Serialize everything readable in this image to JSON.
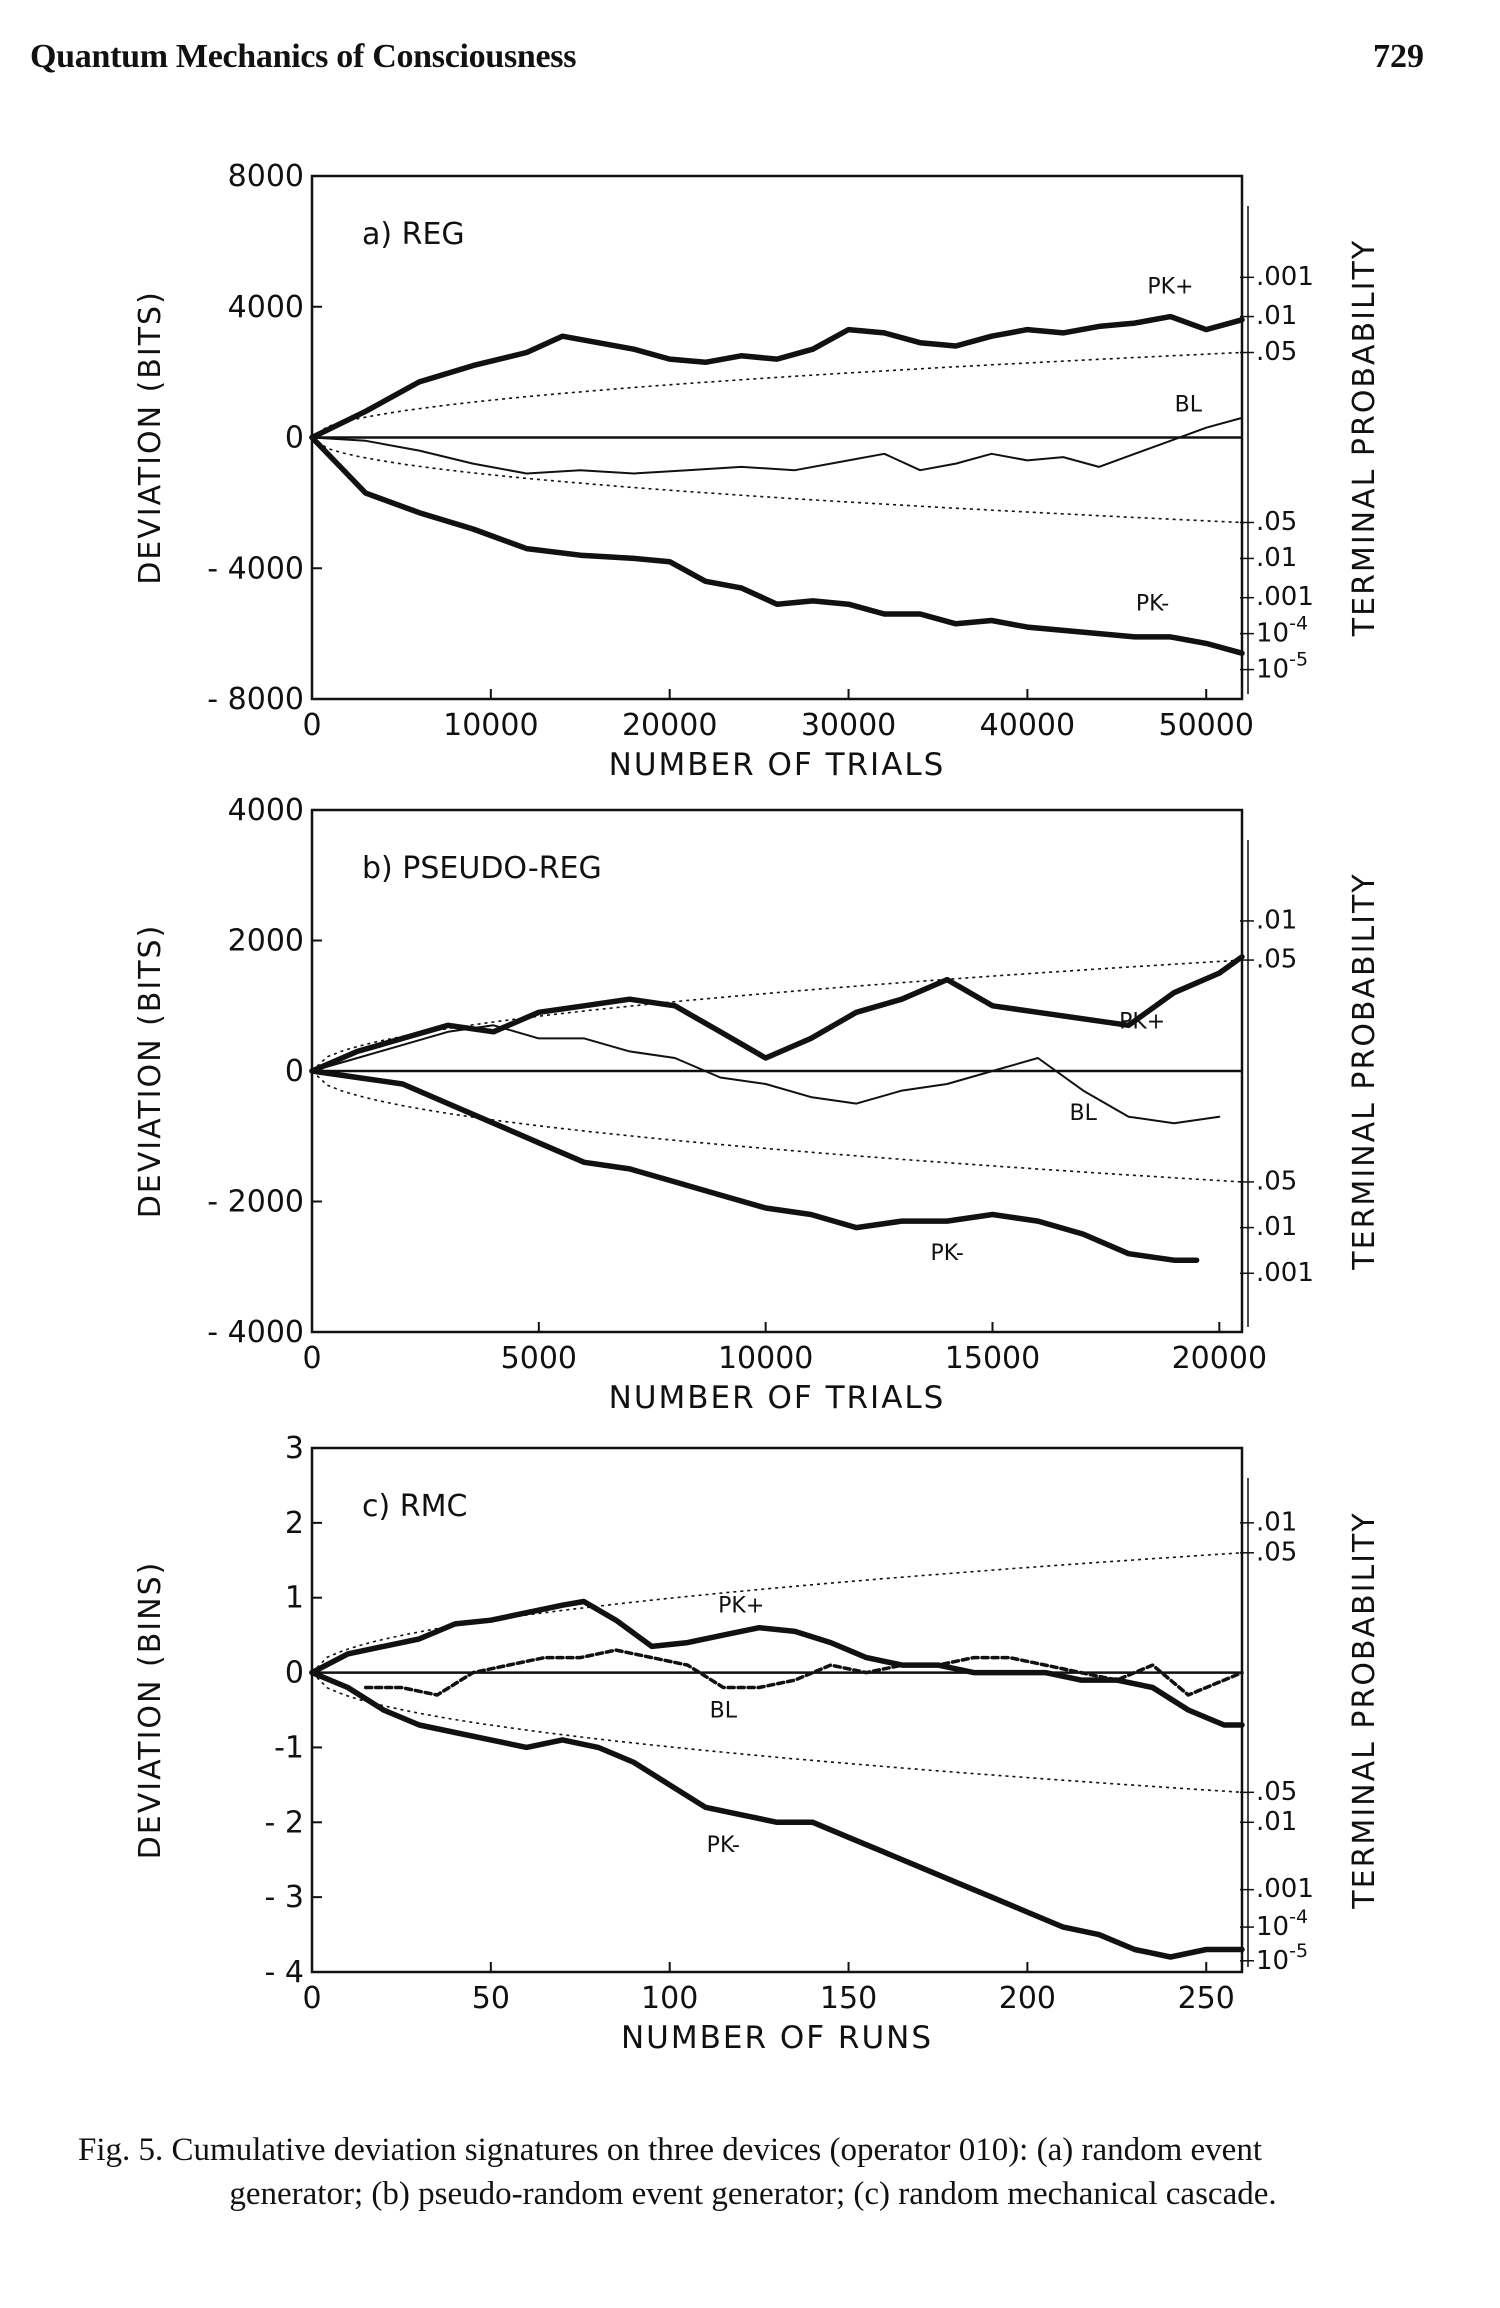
{
  "header": {
    "running_title": "Quantum Mechanics of Consciousness",
    "page_number": "729"
  },
  "caption": {
    "line1": "Fig. 5.  Cumulative deviation signatures on three devices (operator 010): (a) random event",
    "line2": "generator; (b) pseudo-random event generator; (c) random mechanical cascade."
  },
  "chart_data": [
    {
      "type": "line",
      "panel_label": "a) REG",
      "xlabel": "NUMBER OF TRIALS",
      "ylabel": "DEVIATION (BITS)",
      "right_label": "TERMINAL PROBABILITY",
      "xlim": [
        0,
        52000
      ],
      "ylim": [
        -8000,
        8000
      ],
      "x_ticks": [
        0,
        10000,
        20000,
        30000,
        40000,
        50000
      ],
      "x_tick_labels": [
        "0",
        "10000",
        "20000",
        "30000",
        "40000",
        "50000"
      ],
      "y_ticks": [
        8000,
        4000,
        0,
        -4000,
        -8000
      ],
      "y_tick_labels": [
        "8000",
        "4000",
        "0",
        "- 4000",
        "- 8000"
      ],
      "probability_labels": [
        {
          "text": ".001",
          "y": 4900
        },
        {
          "text": ".01",
          "y": 3700
        },
        {
          "text": ".05",
          "y": 2600
        },
        {
          "text": ".05",
          "y": -2600
        },
        {
          "text": ".01",
          "y": -3700
        },
        {
          "text": ".001",
          "y": -4900
        },
        {
          "text": "10-4",
          "y": -6000
        },
        {
          "text": "10-5",
          "y": -7100
        }
      ],
      "envelope_at_max_x": 2600,
      "series": [
        {
          "name": "PK+",
          "style": "heavy",
          "x": [
            0,
            3000,
            6000,
            9000,
            12000,
            14000,
            16000,
            18000,
            20000,
            22000,
            24000,
            26000,
            28000,
            30000,
            32000,
            34000,
            36000,
            38000,
            40000,
            42000,
            44000,
            46000,
            48000,
            50000,
            52000
          ],
          "y": [
            0,
            800,
            1700,
            2200,
            2600,
            3100,
            2900,
            2700,
            2400,
            2300,
            2500,
            2400,
            2700,
            3300,
            3200,
            2900,
            2800,
            3100,
            3300,
            3200,
            3400,
            3500,
            3700,
            3300,
            3600
          ]
        },
        {
          "name": "BL",
          "style": "thin",
          "x": [
            0,
            3000,
            6000,
            9000,
            12000,
            15000,
            18000,
            21000,
            24000,
            27000,
            30000,
            32000,
            34000,
            36000,
            38000,
            40000,
            42000,
            44000,
            46000,
            48000,
            50000,
            52000
          ],
          "y": [
            0,
            -100,
            -400,
            -800,
            -1100,
            -1000,
            -1100,
            -1000,
            -900,
            -1000,
            -700,
            -500,
            -1000,
            -800,
            -500,
            -700,
            -600,
            -900,
            -500,
            -100,
            300,
            600
          ]
        },
        {
          "name": "PK-",
          "style": "heavy",
          "x": [
            0,
            3000,
            6000,
            9000,
            12000,
            15000,
            18000,
            20000,
            22000,
            24000,
            26000,
            28000,
            30000,
            32000,
            34000,
            36000,
            38000,
            40000,
            42000,
            44000,
            46000,
            48000,
            50000,
            52000
          ],
          "y": [
            0,
            -1700,
            -2300,
            -2800,
            -3400,
            -3600,
            -3700,
            -3800,
            -4400,
            -4600,
            -5100,
            -5000,
            -5100,
            -5400,
            -5400,
            -5700,
            -5600,
            -5800,
            -5900,
            -6000,
            -6100,
            -6100,
            -6300,
            -6600
          ]
        }
      ],
      "series_labels": [
        {
          "text": "PK+",
          "x": 48000,
          "y": 4400
        },
        {
          "text": "BL",
          "x": 49000,
          "y": 800
        },
        {
          "text": "PK-",
          "x": 47000,
          "y": -5300
        }
      ]
    },
    {
      "type": "line",
      "panel_label": "b) PSEUDO-REG",
      "xlabel": "NUMBER OF TRIALS",
      "ylabel": "DEVIATION (BITS)",
      "right_label": "TERMINAL PROBABILITY",
      "xlim": [
        0,
        20500
      ],
      "ylim": [
        -4000,
        4000
      ],
      "x_ticks": [
        0,
        5000,
        10000,
        15000,
        20000
      ],
      "x_tick_labels": [
        "0",
        "5000",
        "10000",
        "15000",
        "20000"
      ],
      "y_ticks": [
        4000,
        2000,
        0,
        -2000,
        -4000
      ],
      "y_tick_labels": [
        "4000",
        "2000",
        "0",
        "- 2000",
        "- 4000"
      ],
      "probability_labels": [
        {
          "text": ".01",
          "y": 2300
        },
        {
          "text": ".05",
          "y": 1700
        },
        {
          "text": ".05",
          "y": -1700
        },
        {
          "text": ".01",
          "y": -2400
        },
        {
          "text": ".001",
          "y": -3100
        }
      ],
      "envelope_at_max_x": 1700,
      "series": [
        {
          "name": "PK+",
          "style": "heavy",
          "x": [
            0,
            1000,
            2000,
            3000,
            4000,
            5000,
            6000,
            7000,
            8000,
            9000,
            10000,
            11000,
            12000,
            13000,
            14000,
            15000,
            16000,
            17000,
            18000,
            19000,
            20000,
            20500
          ],
          "y": [
            0,
            300,
            500,
            700,
            600,
            900,
            1000,
            1100,
            1000,
            600,
            200,
            500,
            900,
            1100,
            1400,
            1000,
            900,
            800,
            700,
            1200,
            1500,
            1750
          ]
        },
        {
          "name": "BL",
          "style": "thin",
          "x": [
            0,
            1000,
            2000,
            3000,
            4000,
            5000,
            6000,
            7000,
            8000,
            9000,
            10000,
            11000,
            12000,
            13000,
            14000,
            15000,
            16000,
            17000,
            18000,
            19000,
            20000
          ],
          "y": [
            0,
            200,
            400,
            600,
            700,
            500,
            500,
            300,
            200,
            -100,
            -200,
            -400,
            -500,
            -300,
            -200,
            0,
            200,
            -300,
            -700,
            -800,
            -700
          ]
        },
        {
          "name": "PK-",
          "style": "heavy",
          "x": [
            0,
            1000,
            2000,
            3000,
            4000,
            5000,
            6000,
            7000,
            8000,
            9000,
            10000,
            11000,
            12000,
            13000,
            14000,
            15000,
            16000,
            17000,
            18000,
            19000,
            19500
          ],
          "y": [
            0,
            -100,
            -200,
            -500,
            -800,
            -1100,
            -1400,
            -1500,
            -1700,
            -1900,
            -2100,
            -2200,
            -2400,
            -2300,
            -2300,
            -2200,
            -2300,
            -2500,
            -2800,
            -2900,
            -2900
          ]
        }
      ],
      "series_labels": [
        {
          "text": "PK+",
          "x": 18300,
          "y": 650
        },
        {
          "text": "BL",
          "x": 17000,
          "y": -750
        },
        {
          "text": "PK-",
          "x": 14000,
          "y": -2900
        }
      ]
    },
    {
      "type": "line",
      "panel_label": "c) RMC",
      "xlabel": "NUMBER OF RUNS",
      "ylabel": "DEVIATION (BINS)",
      "right_label": "TERMINAL PROBABILITY",
      "xlim": [
        0,
        260
      ],
      "ylim": [
        -4,
        3
      ],
      "x_ticks": [
        0,
        50,
        100,
        150,
        200,
        250
      ],
      "x_tick_labels": [
        "0",
        "50",
        "100",
        "150",
        "200",
        "250"
      ],
      "y_ticks": [
        3,
        2,
        1,
        0,
        -1,
        -2,
        -3,
        -4
      ],
      "y_tick_labels": [
        "3",
        "2",
        "1",
        "0",
        "-1",
        "- 2",
        "- 3",
        "- 4"
      ],
      "probability_labels": [
        {
          "text": ".01",
          "y": 2.0
        },
        {
          "text": ".05",
          "y": 1.6
        },
        {
          "text": ".05",
          "y": -1.6
        },
        {
          "text": ".01",
          "y": -2.0
        },
        {
          "text": ".001",
          "y": -2.9
        },
        {
          "text": "10-4",
          "y": -3.4
        },
        {
          "text": "10-5",
          "y": -3.85
        }
      ],
      "envelope_at_max_x": 1.6,
      "series": [
        {
          "name": "PK+",
          "style": "heavy",
          "x": [
            0,
            10,
            20,
            30,
            40,
            50,
            60,
            70,
            76,
            85,
            95,
            105,
            115,
            125,
            135,
            145,
            155,
            165,
            175,
            185,
            195,
            205,
            215,
            225,
            235,
            245,
            255,
            260
          ],
          "y": [
            0,
            0.25,
            0.35,
            0.45,
            0.65,
            0.7,
            0.8,
            0.9,
            0.95,
            0.7,
            0.35,
            0.4,
            0.5,
            0.6,
            0.55,
            0.4,
            0.2,
            0.1,
            0.1,
            0.0,
            0.0,
            0.0,
            -0.1,
            -0.1,
            -0.2,
            -0.5,
            -0.7,
            -0.7
          ]
        },
        {
          "name": "BL",
          "style": "dashed",
          "x": [
            15,
            25,
            35,
            45,
            55,
            65,
            75,
            85,
            95,
            105,
            115,
            125,
            135,
            145,
            155,
            165,
            175,
            185,
            195,
            205,
            215,
            225,
            235,
            245,
            255,
            260
          ],
          "y": [
            -0.2,
            -0.2,
            -0.3,
            0.0,
            0.1,
            0.2,
            0.2,
            0.3,
            0.2,
            0.1,
            -0.2,
            -0.2,
            -0.1,
            0.1,
            0.0,
            0.1,
            0.1,
            0.2,
            0.2,
            0.1,
            0.0,
            -0.1,
            0.1,
            -0.3,
            -0.1,
            0.0
          ]
        },
        {
          "name": "PK-",
          "style": "heavy",
          "x": [
            0,
            10,
            20,
            30,
            40,
            50,
            60,
            70,
            80,
            90,
            100,
            110,
            120,
            130,
            140,
            150,
            160,
            170,
            180,
            190,
            200,
            210,
            220,
            230,
            240,
            250,
            260
          ],
          "y": [
            0,
            -0.2,
            -0.5,
            -0.7,
            -0.8,
            -0.9,
            -1.0,
            -0.9,
            -1.0,
            -1.2,
            -1.5,
            -1.8,
            -1.9,
            -2.0,
            -2.0,
            -2.2,
            -2.4,
            -2.6,
            -2.8,
            -3.0,
            -3.2,
            -3.4,
            -3.5,
            -3.7,
            -3.8,
            -3.7,
            -3.7
          ]
        }
      ],
      "series_labels": [
        {
          "text": "PK+",
          "x": 120,
          "y": 0.8
        },
        {
          "text": "BL",
          "x": 115,
          "y": -0.6
        },
        {
          "text": "PK-",
          "x": 115,
          "y": -2.4
        }
      ]
    }
  ]
}
